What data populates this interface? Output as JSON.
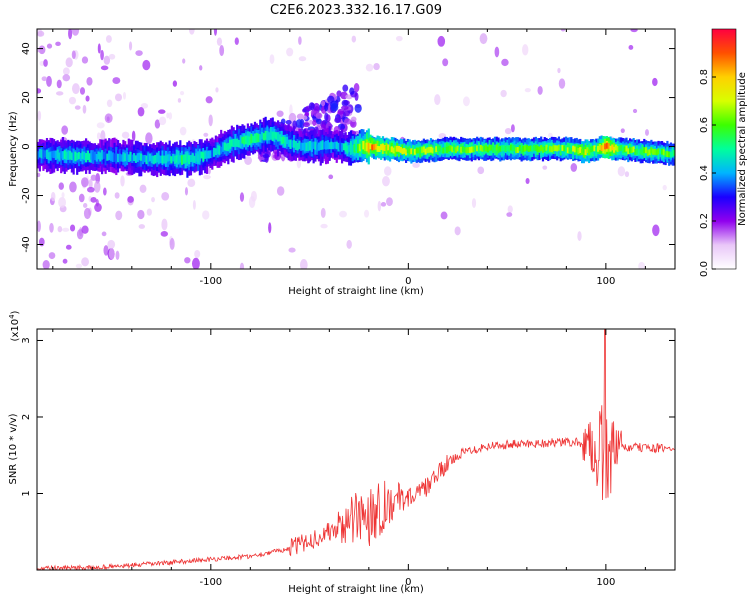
{
  "title": "C2E6.2023.332.16.17.G09",
  "chart_data": [
    {
      "type": "heatmap",
      "xlabel": "Height of straight line (km)",
      "ylabel": "Frequency (Hz)",
      "xlim": [
        -188,
        135
      ],
      "ylim": [
        -50,
        48
      ],
      "x_ticks": [
        -100,
        0,
        100
      ],
      "x_tick_labels": [
        "-100",
        "0",
        "100"
      ],
      "y_ticks": [
        -40,
        -20,
        0,
        20,
        40
      ],
      "y_tick_labels": [
        "-40",
        "-20",
        "0",
        "20",
        "40"
      ],
      "grid": false,
      "colorbar": {
        "label": "Normalized spectral amplitude",
        "range": [
          0.0,
          1.0
        ],
        "ticks": [
          0.0,
          0.2,
          0.4,
          0.6,
          0.8
        ],
        "tick_labels": [
          "0.0",
          "0.2",
          "0.4",
          "0.6",
          "0.8"
        ],
        "colormap": [
          "#ffffff",
          "#e9c7f8",
          "#9000ee",
          "#1a00ff",
          "#00b4ff",
          "#00ff9c",
          "#3cff00",
          "#d8ff00",
          "#ffd000",
          "#ff5000",
          "#ff0040"
        ]
      },
      "ridge": {
        "x": [
          -188,
          -170,
          -150,
          -130,
          -110,
          -100,
          -90,
          -80,
          -70,
          -62,
          -55,
          -45,
          -40,
          -35,
          -30,
          -25,
          -20,
          -10,
          0,
          20,
          40,
          60,
          80,
          90,
          95,
          100,
          105,
          120,
          135
        ],
        "freq": [
          -3,
          -4,
          -4,
          -5,
          -5,
          -3,
          1,
          3,
          5,
          2,
          0,
          0,
          1,
          0,
          -1,
          0,
          0,
          -1,
          -2,
          -1,
          -1,
          -1,
          -1,
          -2,
          -1,
          0,
          -1,
          -2,
          -3
        ],
        "amplitude": [
          0.4,
          0.45,
          0.4,
          0.45,
          0.5,
          0.4,
          0.45,
          0.5,
          0.5,
          0.45,
          0.4,
          0.45,
          0.4,
          0.4,
          0.5,
          0.6,
          0.8,
          0.7,
          0.65,
          0.6,
          0.6,
          0.6,
          0.6,
          0.7,
          0.6,
          0.95,
          0.6,
          0.6,
          0.55
        ]
      }
    },
    {
      "type": "line",
      "xlabel": "Height of straight line (km)",
      "ylabel": "SNR (10 * v/v)",
      "y_scale_label": "(x10",
      "y_scale_exponent": "4",
      "y_scale_suffix": ")",
      "xlim": [
        -188,
        135
      ],
      "ylim": [
        0,
        3.15
      ],
      "x_ticks": [
        -100,
        0,
        100
      ],
      "x_tick_labels": [
        "-100",
        "0",
        "100"
      ],
      "y_ticks": [
        1,
        2,
        3
      ],
      "y_tick_labels": [
        "1",
        "2",
        "3"
      ],
      "grid": false,
      "color": "#ee3333",
      "series": [
        {
          "x": [
            -188,
            -160,
            -140,
            -120,
            -100,
            -80,
            -60,
            -50,
            -40,
            -30,
            -25,
            -20,
            -15,
            -10,
            -5,
            0,
            5,
            10,
            15,
            20,
            25,
            30,
            40,
            50,
            60,
            70,
            80,
            90,
            95,
            98,
            100,
            102,
            105,
            110,
            120,
            135
          ],
          "y": [
            0.02,
            0.03,
            0.06,
            0.1,
            0.14,
            0.18,
            0.28,
            0.38,
            0.5,
            0.62,
            0.68,
            0.75,
            0.82,
            0.88,
            0.93,
            0.95,
            1.0,
            1.1,
            1.25,
            1.4,
            1.5,
            1.56,
            1.62,
            1.64,
            1.65,
            1.66,
            1.67,
            1.66,
            1.6,
            1.5,
            1.45,
            1.5,
            1.58,
            1.6,
            1.6,
            1.58
          ]
        }
      ]
    }
  ]
}
